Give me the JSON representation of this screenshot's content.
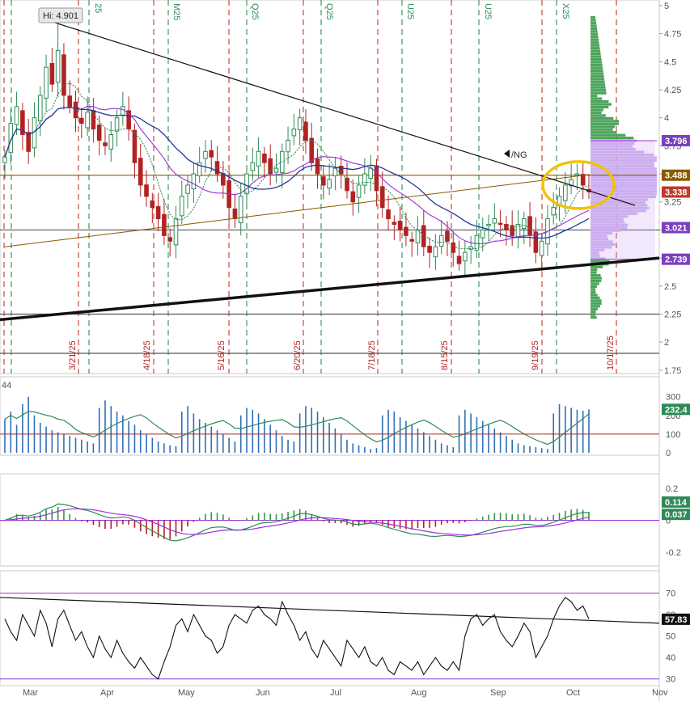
{
  "chart_data": [
    {
      "type": "candlestick",
      "panel": "price",
      "symbol": "/NG",
      "y_axis_ticks": [
        "5",
        "4.75",
        "4.5",
        "4.25",
        "4",
        "3.75",
        "3.5",
        "3.25",
        "3",
        "2.75",
        "2.5",
        "2.25",
        "2",
        "1.75"
      ],
      "ylim": [
        1.72,
        5.05
      ],
      "month_labels": [
        "Mar",
        "Apr",
        "May",
        "Jun",
        "Jul",
        "Aug",
        "Sep",
        "Oct",
        "Nov"
      ],
      "expiry_dates": [
        "3/21/25",
        "4/18/25",
        "5/16/25",
        "6/20/25",
        "7/18/25",
        "8/15/25",
        "9/19/25",
        "10/17/25"
      ],
      "top_markers": [
        "25",
        "M25",
        "Q25",
        "Q25",
        "U25",
        "U25",
        "X25"
      ],
      "high_label": "Hi: 4.901",
      "high_value": 4.901,
      "price_tags": [
        {
          "text": "3.796",
          "value": 3.796,
          "color": "#7b3fbf"
        },
        {
          "text": "3.488",
          "value": 3.488,
          "color": "#8b5a00"
        },
        {
          "text": "3.338",
          "value": 3.338,
          "color": "#c0392b"
        },
        {
          "text": "3.021",
          "value": 3.021,
          "color": "#7b3fbf"
        },
        {
          "text": "2.739",
          "value": 2.739,
          "color": "#7b3fbf"
        }
      ],
      "horizontal_lines": [
        3.0,
        2.25,
        1.9
      ],
      "closes": [
        3.65,
        3.95,
        4.1,
        3.85,
        3.7,
        4.0,
        4.2,
        4.45,
        4.3,
        4.6,
        4.2,
        4.1,
        4.0,
        3.95,
        4.05,
        3.9,
        3.8,
        3.75,
        3.85,
        4.0,
        4.1,
        3.9,
        3.6,
        3.4,
        3.3,
        3.2,
        3.1,
        2.95,
        2.9,
        3.1,
        3.3,
        3.4,
        3.5,
        3.6,
        3.7,
        3.65,
        3.5,
        3.4,
        3.2,
        3.1,
        3.3,
        3.5,
        3.6,
        3.7,
        3.6,
        3.5,
        3.55,
        3.7,
        3.8,
        3.9,
        4.0,
        3.8,
        3.6,
        3.5,
        3.4,
        3.45,
        3.55,
        3.5,
        3.35,
        3.25,
        3.4,
        3.5,
        3.55,
        3.35,
        3.2,
        3.1,
        3.05,
        3.0,
        2.95,
        2.9,
        3.0,
        2.85,
        2.8,
        2.85,
        2.95,
        2.9,
        2.8,
        2.7,
        2.8,
        2.85,
        2.95,
        3.0,
        3.05,
        3.1,
        3.05,
        3.0,
        2.95,
        3.05,
        3.1,
        2.95,
        2.8,
        2.9,
        3.1,
        3.2,
        3.3,
        3.4,
        3.45,
        3.5,
        3.4,
        3.34
      ],
      "volume_panel": {
        "y_ticks": [
          "300",
          "200",
          "100",
          "0"
        ],
        "ylim": [
          0,
          320
        ],
        "last_value": "232.4",
        "title_fragment": "44",
        "volumes": [
          180,
          220,
          150,
          260,
          300,
          200,
          160,
          140,
          120,
          110,
          100,
          90,
          80,
          70,
          60,
          50,
          240,
          280,
          250,
          220,
          200,
          170,
          150,
          120,
          100,
          80,
          60,
          50,
          40,
          35,
          220,
          250,
          210,
          180,
          160,
          140,
          120,
          100,
          80,
          60,
          200,
          240,
          230,
          210,
          180,
          150,
          120,
          90,
          70,
          60,
          210,
          250,
          240,
          220,
          190,
          160,
          130,
          100,
          70,
          50,
          40,
          30,
          20,
          25,
          200,
          230,
          220,
          190,
          170,
          150,
          130,
          110,
          90,
          70,
          50,
          40,
          30,
          200,
          230,
          210,
          190,
          170,
          150,
          130,
          110,
          90,
          70,
          50,
          40,
          35,
          30,
          25,
          20,
          210,
          260,
          250,
          240,
          230,
          225,
          232
        ]
      },
      "macd_panel": {
        "y_ticks": [
          "0.2",
          "0",
          "-0.2"
        ],
        "ylim": [
          -0.27,
          0.27
        ],
        "last_values": [
          {
            "text": "0.114",
            "color": "#2e8b57"
          },
          {
            "text": "0.037",
            "color": "#2e8b57"
          }
        ]
      },
      "rsi_panel": {
        "y_ticks": [
          "70",
          "60",
          "50",
          "40",
          "30"
        ],
        "ylim": [
          28,
          74
        ],
        "upper_band": 70,
        "lower_band": 30,
        "last_value": "57.83",
        "values": [
          58,
          52,
          48,
          60,
          55,
          50,
          62,
          56,
          45,
          58,
          62,
          55,
          48,
          52,
          45,
          40,
          50,
          44,
          40,
          48,
          42,
          38,
          35,
          40,
          36,
          32,
          30,
          38,
          45,
          55,
          58,
          52,
          60,
          55,
          50,
          48,
          42,
          45,
          55,
          60,
          58,
          56,
          62,
          64,
          60,
          58,
          55,
          66,
          60,
          55,
          48,
          52,
          44,
          40,
          48,
          44,
          40,
          36,
          48,
          44,
          40,
          45,
          38,
          36,
          40,
          34,
          32,
          38,
          36,
          34,
          38,
          32,
          36,
          40,
          36,
          34,
          38,
          34,
          50,
          58,
          60,
          55,
          58,
          60,
          52,
          48,
          45,
          50,
          56,
          52,
          40,
          45,
          50,
          58,
          64,
          68,
          66,
          62,
          64,
          58
        ]
      }
    }
  ],
  "colors": {
    "up": "#2e8b57",
    "down": "#b22222",
    "sma_green": "#2e8b57",
    "sma_purple": "#9b30d9",
    "sma_blue": "#1e3a9e",
    "sma_brown": "#8b5a00",
    "volume_bar": "#2f6fb5",
    "volume_line": "#2e8b57",
    "vp_green": "#3a9a4a",
    "vp_purple": "#c9a8f0",
    "highlight": "#f2c20a",
    "grid_red": "#c0392b",
    "grid_green": "#2e8b57"
  }
}
